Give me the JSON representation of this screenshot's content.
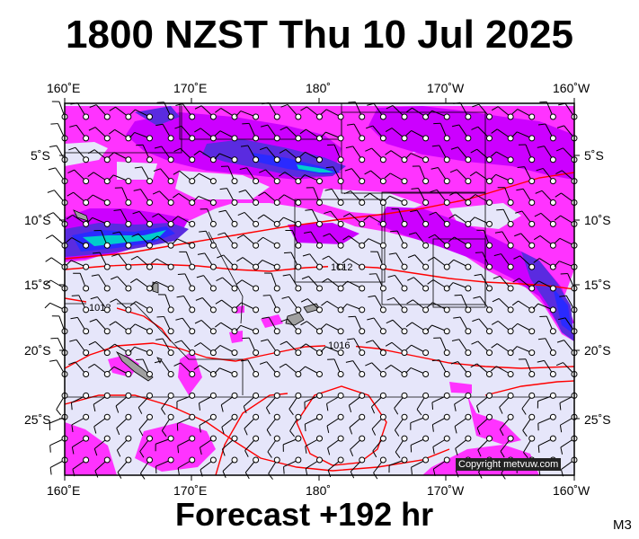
{
  "title": "1800 NZST Thu 10 Jul 2025",
  "footer": "Forecast +192 hr",
  "model": "M3",
  "copyright": "Copyright metvuw.com",
  "longitude_labels": [
    "160˚E",
    "170˚E",
    "180˚",
    "170˚W",
    "160˚W"
  ],
  "latitude_labels": [
    "5˚S",
    "10˚S",
    "15˚S",
    "20˚S",
    "25˚S"
  ],
  "isobar_labels": [
    "1012",
    "1012",
    "1016"
  ],
  "colors": {
    "background": "#e6e6fa",
    "rain_light": "#ff33ff",
    "rain_medium": "#cc00ff",
    "rain_heavy": "#5a2be0",
    "rain_very_heavy": "#2a2aff",
    "rain_extreme": "#00cccc",
    "isobar": "#ff0000",
    "land": "#a0a0a0"
  }
}
